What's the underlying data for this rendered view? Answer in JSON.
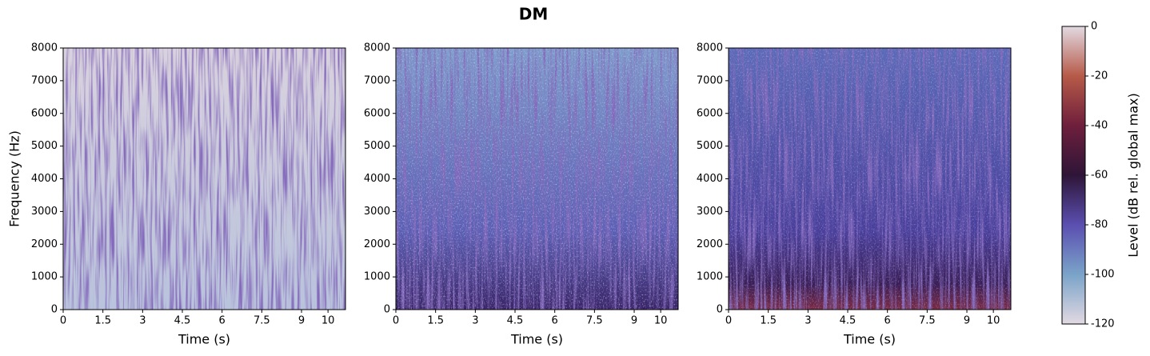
{
  "title": "DM",
  "chart_data": [
    {
      "type": "spectrogram",
      "xlabel": "Time (s)",
      "ylabel": "Frequency (Hz)",
      "xlim": [
        0,
        10.66
      ],
      "xticks": [
        0,
        1.5,
        3,
        4.5,
        6,
        7.5,
        9,
        10
      ],
      "ylim": [
        0,
        8000
      ],
      "yticks": [
        0,
        1000,
        2000,
        3000,
        4000,
        5000,
        6000,
        7000,
        8000
      ]
    },
    {
      "type": "spectrogram",
      "xlabel": "Time (s)",
      "xlim": [
        0,
        10.66
      ],
      "xticks": [
        0,
        1.5,
        3,
        4.5,
        6,
        7.5,
        9,
        10
      ],
      "ylim": [
        0,
        8000
      ],
      "yticks": [
        0,
        1000,
        2000,
        3000,
        4000,
        5000,
        6000,
        7000,
        8000
      ]
    },
    {
      "type": "spectrogram",
      "xlabel": "Time (s)",
      "xlim": [
        0,
        10.66
      ],
      "xticks": [
        0,
        1.5,
        3,
        4.5,
        6,
        7.5,
        9,
        10
      ],
      "ylim": [
        0,
        8000
      ],
      "yticks": [
        0,
        1000,
        2000,
        3000,
        4000,
        5000,
        6000,
        7000,
        8000
      ]
    },
    {
      "type": "colorbar",
      "ylabel": "Level (dB rel. global max)",
      "colormap": "twilight_shifted",
      "ylim": [
        -120,
        0
      ],
      "yticks": [
        -120,
        -100,
        -80,
        -60,
        -40,
        -20,
        0
      ]
    }
  ]
}
